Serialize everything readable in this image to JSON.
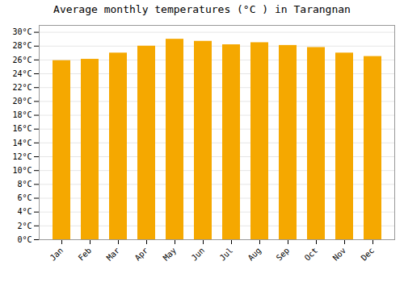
{
  "chart_data": {
    "type": "bar",
    "title": "Average monthly temperatures (°C ) in Tarangnan",
    "categories": [
      "Jan",
      "Feb",
      "Mar",
      "Apr",
      "May",
      "Jun",
      "Jul",
      "Aug",
      "Sep",
      "Oct",
      "Nov",
      "Dec"
    ],
    "values": [
      25.9,
      26.1,
      27.0,
      28.0,
      29.0,
      28.7,
      28.2,
      28.5,
      28.1,
      27.8,
      27.0,
      26.5
    ],
    "color": "#F5A800",
    "ylim": [
      0,
      31
    ],
    "yticks": [
      {
        "value": 0,
        "label": "0°C"
      },
      {
        "value": 2,
        "label": "2°C"
      },
      {
        "value": 4,
        "label": "4°C"
      },
      {
        "value": 6,
        "label": "6°C"
      },
      {
        "value": 8,
        "label": "8°C"
      },
      {
        "value": 10,
        "label": "10°C"
      },
      {
        "value": 12,
        "label": "12°C"
      },
      {
        "value": 14,
        "label": "14°C"
      },
      {
        "value": 16,
        "label": "16°C"
      },
      {
        "value": 18,
        "label": "18°C"
      },
      {
        "value": 20,
        "label": "20°C"
      },
      {
        "value": 22,
        "label": "22°C"
      },
      {
        "value": 24,
        "label": "24°C"
      },
      {
        "value": 26,
        "label": "26°C"
      },
      {
        "value": 28,
        "label": "28°C"
      },
      {
        "value": 30,
        "label": "30°C"
      }
    ],
    "grid": true
  }
}
